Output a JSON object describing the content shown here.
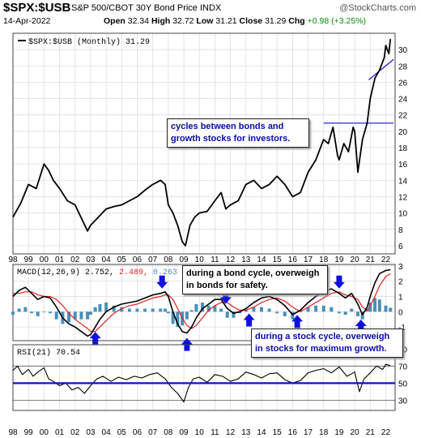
{
  "header": {
    "symbol": "$SPX:$USB",
    "description": "S&P 500/CBOT 30Y Bond Price INDX",
    "brand": "@StockCharts.com",
    "date": "14-Apr-2022",
    "open_label": "Open",
    "open": "32.34",
    "high_label": "High",
    "high": "32.72",
    "low_label": "Low",
    "low": "31.21",
    "close_label": "Close",
    "close": "31.29",
    "chg_label": "Chg",
    "chg": "+0.98 (+3.25%)"
  },
  "annotations": {
    "main": "cycles between bonds and growth stocks for investors.",
    "bond": "during a bond cycle, overweigh in bonds for safety.",
    "stock": "during a stock cycle, overweigh in stocks for maximum growth."
  },
  "colors": {
    "price": "#000000",
    "macd": "#000000",
    "signal": "#e02020",
    "histogram": "#4a90b8",
    "arrow": "#1010dd",
    "blue_line": "#1010cc",
    "grid": "#d8d8d8"
  },
  "chart_data": [
    {
      "type": "line",
      "legend": "$SPX:$USB (Monthly) 31.29",
      "x_labels": [
        "98",
        "99",
        "00",
        "01",
        "02",
        "03",
        "04",
        "05",
        "06",
        "07",
        "08",
        "09",
        "10",
        "11",
        "12",
        "13",
        "14",
        "15",
        "16",
        "17",
        "18",
        "19",
        "20",
        "21",
        "22"
      ],
      "y_ticks": [
        6,
        8,
        10,
        12,
        14,
        16,
        18,
        20,
        22,
        24,
        26,
        28,
        30
      ],
      "ylim": [
        5,
        32
      ],
      "grid": true,
      "x": [
        1998.0,
        1998.5,
        1999.0,
        1999.5,
        2000.0,
        2000.3,
        2000.6,
        2001.0,
        2001.5,
        2002.0,
        2002.5,
        2002.8,
        2003.0,
        2003.5,
        2004.0,
        2004.5,
        2005.0,
        2005.5,
        2006.0,
        2006.5,
        2007.0,
        2007.5,
        2007.8,
        2008.0,
        2008.3,
        2008.6,
        2008.9,
        2009.1,
        2009.4,
        2009.7,
        2010.0,
        2010.5,
        2011.0,
        2011.4,
        2011.7,
        2012.0,
        2012.5,
        2013.0,
        2013.5,
        2014.0,
        2014.5,
        2015.0,
        2015.5,
        2016.0,
        2016.5,
        2017.0,
        2017.5,
        2018.0,
        2018.3,
        2018.6,
        2018.9,
        2019.0,
        2019.3,
        2019.6,
        2019.9,
        2020.0,
        2020.2,
        2020.5,
        2020.8,
        2021.0,
        2021.3,
        2021.6,
        2021.9,
        2022.0,
        2022.2,
        2022.3
      ],
      "y": [
        9.5,
        11.2,
        13.5,
        13.0,
        16.0,
        15.2,
        14.0,
        13.0,
        11.5,
        11.0,
        9.0,
        7.8,
        8.5,
        9.5,
        10.5,
        10.8,
        11.0,
        11.5,
        12.0,
        12.8,
        13.5,
        14.0,
        13.5,
        11.0,
        10.0,
        8.5,
        6.5,
        6.0,
        8.5,
        9.5,
        10.0,
        10.2,
        11.5,
        12.5,
        10.5,
        11.0,
        11.5,
        13.5,
        14.0,
        13.0,
        13.5,
        14.5,
        13.5,
        12.0,
        12.5,
        15.0,
        16.5,
        19.0,
        18.5,
        20.5,
        17.0,
        16.5,
        18.5,
        17.5,
        20.5,
        20.0,
        15.0,
        19.0,
        21.0,
        24.0,
        26.5,
        27.5,
        29.0,
        30.5,
        29.5,
        31.3
      ],
      "annotation_lines": [
        {
          "x": [
            2018.0,
            2022.5
          ],
          "y": [
            21.0,
            21.0
          ]
        },
        {
          "x": [
            2020.9,
            2022.5
          ],
          "y": [
            26.3,
            28.8
          ]
        }
      ]
    },
    {
      "type": "line",
      "legend_label": "MACD(12,26,9)",
      "macd_value": "2.752",
      "signal_value": "2.489",
      "histogram_value": "0.263",
      "y_ticks": [
        -1,
        0,
        1,
        2,
        3
      ],
      "ylim": [
        -1.9,
        3.1
      ],
      "x": [
        1998.0,
        1998.4,
        1998.8,
        1999.2,
        1999.6,
        2000.0,
        2000.4,
        2000.8,
        2001.2,
        2001.6,
        2002.0,
        2002.4,
        2002.8,
        2003.0,
        2003.3,
        2003.6,
        2004.0,
        2004.5,
        2005.0,
        2005.5,
        2006.0,
        2006.5,
        2007.0,
        2007.5,
        2007.8,
        2008.0,
        2008.3,
        2008.6,
        2008.9,
        2009.2,
        2009.5,
        2009.8,
        2010.2,
        2010.6,
        2011.0,
        2011.4,
        2011.8,
        2012.2,
        2012.6,
        2013.0,
        2013.5,
        2014.0,
        2014.5,
        2015.0,
        2015.5,
        2016.0,
        2016.5,
        2017.0,
        2017.5,
        2018.0,
        2018.5,
        2019.0,
        2019.4,
        2019.8,
        2020.2,
        2020.5,
        2020.8,
        2021.0,
        2021.3,
        2021.6,
        2022.0,
        2022.3
      ],
      "macd": [
        1.0,
        1.4,
        1.6,
        1.2,
        0.8,
        1.0,
        0.9,
        0.3,
        -0.4,
        -0.8,
        -1.0,
        -1.3,
        -1.6,
        -1.5,
        -1.0,
        -0.5,
        0.0,
        0.3,
        0.5,
        0.6,
        0.7,
        0.9,
        1.1,
        1.2,
        1.3,
        1.0,
        0.0,
        -0.8,
        -1.3,
        -1.4,
        -1.0,
        -0.4,
        0.2,
        0.5,
        0.8,
        0.8,
        0.2,
        -0.1,
        0.0,
        0.2,
        0.6,
        0.9,
        1.0,
        0.8,
        0.4,
        -0.2,
        0.1,
        0.6,
        1.0,
        1.3,
        1.5,
        1.2,
        0.9,
        1.2,
        0.5,
        -0.2,
        0.3,
        1.0,
        1.9,
        2.5,
        2.7,
        2.75
      ],
      "signal": [
        1.2,
        1.2,
        1.3,
        1.3,
        1.1,
        1.0,
        1.0,
        0.8,
        0.4,
        -0.1,
        -0.5,
        -0.8,
        -1.1,
        -1.3,
        -1.3,
        -1.0,
        -0.6,
        -0.1,
        0.2,
        0.4,
        0.5,
        0.7,
        0.9,
        1.0,
        1.1,
        1.1,
        0.8,
        0.2,
        -0.4,
        -0.9,
        -1.1,
        -0.9,
        -0.4,
        0.1,
        0.4,
        0.6,
        0.6,
        0.3,
        0.1,
        0.1,
        0.3,
        0.6,
        0.8,
        0.9,
        0.7,
        0.3,
        0.0,
        0.3,
        0.6,
        0.9,
        1.2,
        1.3,
        1.1,
        1.0,
        0.8,
        0.3,
        0.1,
        0.4,
        1.0,
        1.7,
        2.3,
        2.49
      ],
      "arrows_up": [
        2003.3,
        2009.2,
        2013.2,
        2016.3,
        2020.4
      ],
      "arrows_down": [
        2007.6,
        2011.7,
        2015.0,
        2019.0
      ]
    },
    {
      "type": "line",
      "legend_label": "RSI(21)",
      "legend_value": "70.54",
      "y_ticks": [
        30,
        50,
        70,
        90
      ],
      "ylim": [
        18,
        95
      ],
      "ref_lines": [
        30,
        70
      ],
      "blue_line": 50,
      "x": [
        1998.0,
        1998.3,
        1998.6,
        1999.0,
        1999.3,
        1999.6,
        2000.0,
        2000.3,
        2000.6,
        2001.0,
        2001.4,
        2001.8,
        2002.2,
        2002.6,
        2003.0,
        2003.4,
        2003.8,
        2004.3,
        2004.8,
        2005.3,
        2005.8,
        2006.3,
        2006.8,
        2007.3,
        2007.8,
        2008.2,
        2008.6,
        2009.0,
        2009.3,
        2009.6,
        2010.0,
        2010.5,
        2011.0,
        2011.5,
        2012.0,
        2012.5,
        2013.0,
        2013.5,
        2014.0,
        2014.5,
        2015.0,
        2015.5,
        2016.0,
        2016.5,
        2017.0,
        2017.5,
        2018.0,
        2018.5,
        2019.0,
        2019.5,
        2020.0,
        2020.3,
        2020.6,
        2021.0,
        2021.4,
        2021.8,
        2022.0,
        2022.3
      ],
      "y": [
        65,
        70,
        60,
        66,
        58,
        63,
        68,
        55,
        52,
        47,
        50,
        42,
        45,
        38,
        47,
        55,
        58,
        52,
        57,
        54,
        58,
        56,
        60,
        62,
        55,
        45,
        38,
        28,
        45,
        55,
        57,
        51,
        60,
        58,
        52,
        55,
        63,
        60,
        56,
        61,
        62,
        54,
        50,
        53,
        62,
        65,
        67,
        62,
        69,
        58,
        63,
        40,
        55,
        62,
        70,
        66,
        72,
        70.5
      ]
    }
  ]
}
